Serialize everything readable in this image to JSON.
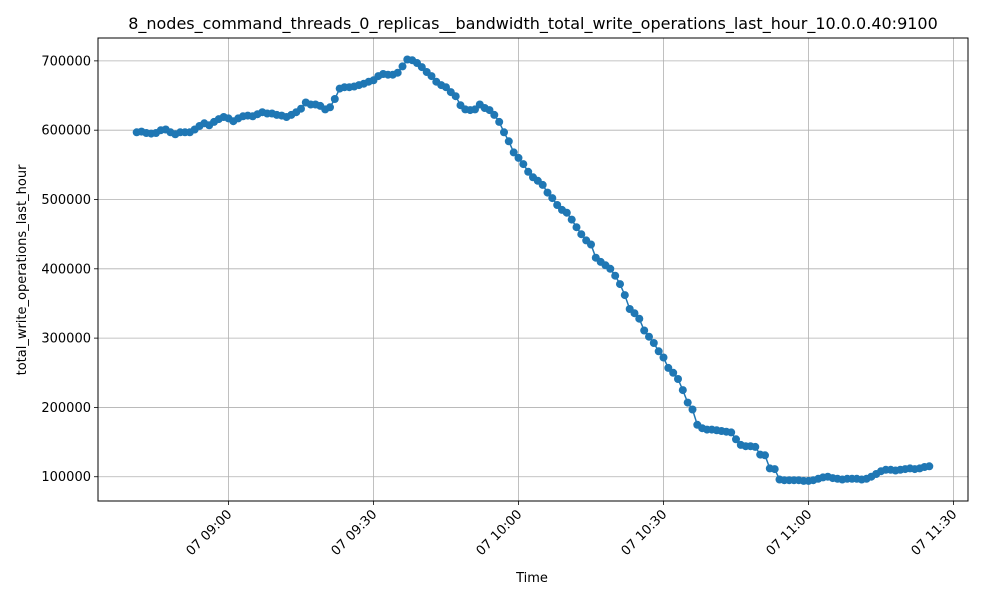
{
  "chart_data": {
    "type": "line",
    "title": "8_nodes_command_threads_0_replicas__bandwidth_total_write_operations_last_hour_10.0.0.40:9100",
    "xlabel": "Time",
    "ylabel": "total_write_operations_last_hour",
    "xlim": [
      "07 08:33",
      "07 11:33"
    ],
    "ylim": [
      65000,
      733000
    ],
    "xticks": [
      "07 09:00",
      "07 09:30",
      "07 10:00",
      "07 10:30",
      "07 11:00",
      "07 11:30"
    ],
    "yticks": [
      100000,
      200000,
      300000,
      400000,
      500000,
      600000,
      700000
    ],
    "ytick_labels": [
      "100000",
      "200000",
      "300000",
      "400000",
      "500000",
      "600000",
      "700000"
    ],
    "grid": true,
    "marker": "circle",
    "color": "#1f77b4",
    "series": [
      {
        "x": [
          "07 08:41",
          "07 08:42",
          "07 08:43",
          "07 08:44",
          "07 08:45",
          "07 08:46",
          "07 08:47",
          "07 08:48",
          "07 08:49",
          "07 08:50",
          "07 08:51",
          "07 08:52",
          "07 08:53",
          "07 08:54",
          "07 08:55",
          "07 08:56",
          "07 08:57",
          "07 08:58",
          "07 08:59",
          "07 09:00",
          "07 09:01",
          "07 09:02",
          "07 09:03",
          "07 09:04",
          "07 09:05",
          "07 09:06",
          "07 09:07",
          "07 09:08",
          "07 09:09",
          "07 09:10",
          "07 09:11",
          "07 09:12",
          "07 09:13",
          "07 09:14",
          "07 09:15",
          "07 09:16",
          "07 09:17",
          "07 09:18",
          "07 09:19",
          "07 09:20",
          "07 09:21",
          "07 09:22",
          "07 09:23",
          "07 09:24",
          "07 09:25",
          "07 09:26",
          "07 09:27",
          "07 09:28",
          "07 09:29",
          "07 09:30",
          "07 09:31",
          "07 09:32",
          "07 09:33",
          "07 09:34",
          "07 09:35",
          "07 09:36",
          "07 09:37",
          "07 09:38",
          "07 09:39",
          "07 09:40",
          "07 09:41",
          "07 09:42",
          "07 09:43",
          "07 09:44",
          "07 09:45",
          "07 09:46",
          "07 09:47",
          "07 09:48",
          "07 09:49",
          "07 09:50",
          "07 09:51",
          "07 09:52",
          "07 09:53",
          "07 09:54",
          "07 09:55",
          "07 09:56",
          "07 09:57",
          "07 09:58",
          "07 09:59",
          "07 10:00",
          "07 10:01",
          "07 10:02",
          "07 10:03",
          "07 10:04",
          "07 10:05",
          "07 10:06",
          "07 10:07",
          "07 10:08",
          "07 10:09",
          "07 10:10",
          "07 10:11",
          "07 10:12",
          "07 10:13",
          "07 10:14",
          "07 10:15",
          "07 10:16",
          "07 10:17",
          "07 10:18",
          "07 10:19",
          "07 10:20",
          "07 10:21",
          "07 10:22",
          "07 10:23",
          "07 10:24",
          "07 10:25",
          "07 10:26",
          "07 10:27",
          "07 10:28",
          "07 10:29",
          "07 10:30",
          "07 10:31",
          "07 10:32",
          "07 10:33",
          "07 10:34",
          "07 10:35",
          "07 10:36",
          "07 10:37",
          "07 10:38",
          "07 10:39",
          "07 10:40",
          "07 10:41",
          "07 10:42",
          "07 10:43",
          "07 10:44",
          "07 10:45",
          "07 10:46",
          "07 10:47",
          "07 10:48",
          "07 10:49",
          "07 10:50",
          "07 10:51",
          "07 10:52",
          "07 10:53",
          "07 10:54",
          "07 10:55",
          "07 10:56",
          "07 10:57",
          "07 10:58",
          "07 10:59",
          "07 11:00",
          "07 11:01",
          "07 11:02",
          "07 11:03",
          "07 11:04",
          "07 11:05",
          "07 11:06",
          "07 11:07",
          "07 11:08",
          "07 11:09",
          "07 11:10",
          "07 11:11",
          "07 11:12",
          "07 11:13",
          "07 11:14",
          "07 11:15",
          "07 11:16",
          "07 11:17",
          "07 11:18",
          "07 11:19",
          "07 11:20",
          "07 11:21",
          "07 11:22",
          "07 11:23",
          "07 11:24",
          "07 11:25"
        ],
        "values": [
          597000,
          598000,
          596000,
          595000,
          596000,
          600000,
          601000,
          597000,
          594000,
          597000,
          597000,
          597000,
          601000,
          606000,
          610000,
          607000,
          612000,
          616000,
          619000,
          617000,
          613000,
          617000,
          620000,
          621000,
          620000,
          623000,
          626000,
          624000,
          624000,
          622000,
          621000,
          619000,
          622000,
          626000,
          631000,
          640000,
          637000,
          637000,
          635000,
          630000,
          633000,
          645000,
          660000,
          662000,
          662000,
          663000,
          665000,
          667000,
          670000,
          672000,
          678000,
          681000,
          680000,
          680000,
          683000,
          692000,
          702000,
          701000,
          697000,
          691000,
          684000,
          678000,
          670000,
          665000,
          662000,
          655000,
          649000,
          636000,
          630000,
          629000,
          630000,
          637000,
          632000,
          629000,
          622000,
          612000,
          597000,
          584000,
          568000,
          560000,
          551000,
          540000,
          532000,
          527000,
          521000,
          510000,
          502000,
          492000,
          485000,
          481000,
          471000,
          460000,
          450000,
          441000,
          435000,
          416000,
          410000,
          405000,
          400000,
          390000,
          378000,
          362000,
          342000,
          336000,
          328000,
          311000,
          302000,
          293000,
          281000,
          272000,
          257000,
          250000,
          241000,
          225000,
          207000,
          197000,
          175000,
          170000,
          168000,
          168000,
          167000,
          166000,
          165000,
          164000,
          154000,
          146000,
          144000,
          144000,
          143000,
          132000,
          131000,
          112000,
          111000,
          96000,
          95000,
          95000,
          95000,
          95000,
          94000,
          94000,
          95000,
          97000,
          99000,
          100000,
          98000,
          97000,
          96000,
          97000,
          97000,
          97000,
          96000,
          97000,
          100000,
          104000,
          108000,
          110000,
          110000,
          109000,
          110000,
          111000,
          112000,
          111000,
          112000,
          114000,
          115000
        ]
      }
    ]
  }
}
